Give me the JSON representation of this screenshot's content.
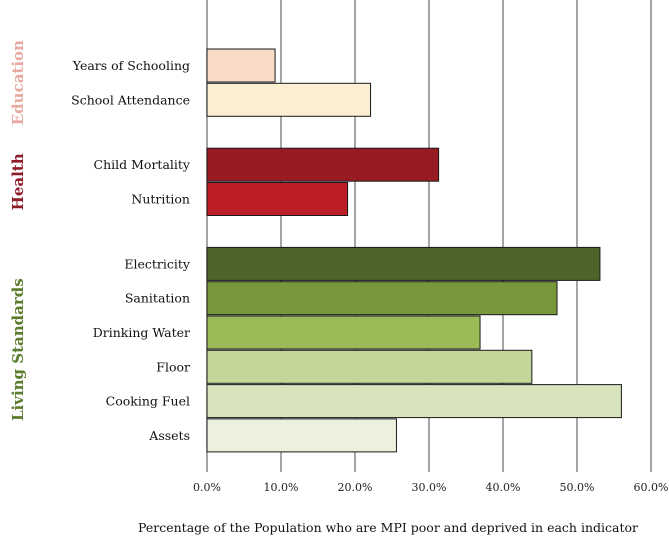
{
  "chart_data": {
    "type": "bar",
    "orientation": "horizontal",
    "title": "",
    "xlabel": "Percentage of the Population who are MPI poor and deprived in each indicator",
    "ylabel": "",
    "xlim": [
      0,
      60
    ],
    "xticks": [
      "0.0%",
      "10.0%",
      "20.0%",
      "30.0%",
      "40.0%",
      "50.0%",
      "60.0%"
    ],
    "grid": "vertical",
    "legend": "none",
    "groups": [
      {
        "name": "Education",
        "color": "#e7a9a0",
        "bars": [
          {
            "label": "Years of Schooling",
            "value": 9.2,
            "color": "#f8dcc8"
          },
          {
            "label": "School Attendance",
            "value": 22.1,
            "color": "#fbefd2"
          }
        ]
      },
      {
        "name": "Health",
        "color": "#8c1d27",
        "bars": [
          {
            "label": "Child Mortality",
            "value": 31.3,
            "color": "#981b22"
          },
          {
            "label": "Nutrition",
            "value": 19.0,
            "color": "#bd1f27"
          }
        ]
      },
      {
        "name": "Living Standards",
        "color": "#5c7d2e",
        "bars": [
          {
            "label": "Electricity",
            "value": 53.1,
            "color": "#4d6428"
          },
          {
            "label": "Sanitation",
            "value": 47.3,
            "color": "#76983a"
          },
          {
            "label": "Drinking Water",
            "value": 36.9,
            "color": "#9bbb59"
          },
          {
            "label": "Floor",
            "value": 43.9,
            "color": "#c4d79b"
          },
          {
            "label": "Cooking Fuel",
            "value": 56.0,
            "color": "#d7e4bc"
          },
          {
            "label": "Assets",
            "value": 25.6,
            "color": "#ebf1de"
          }
        ]
      }
    ]
  }
}
